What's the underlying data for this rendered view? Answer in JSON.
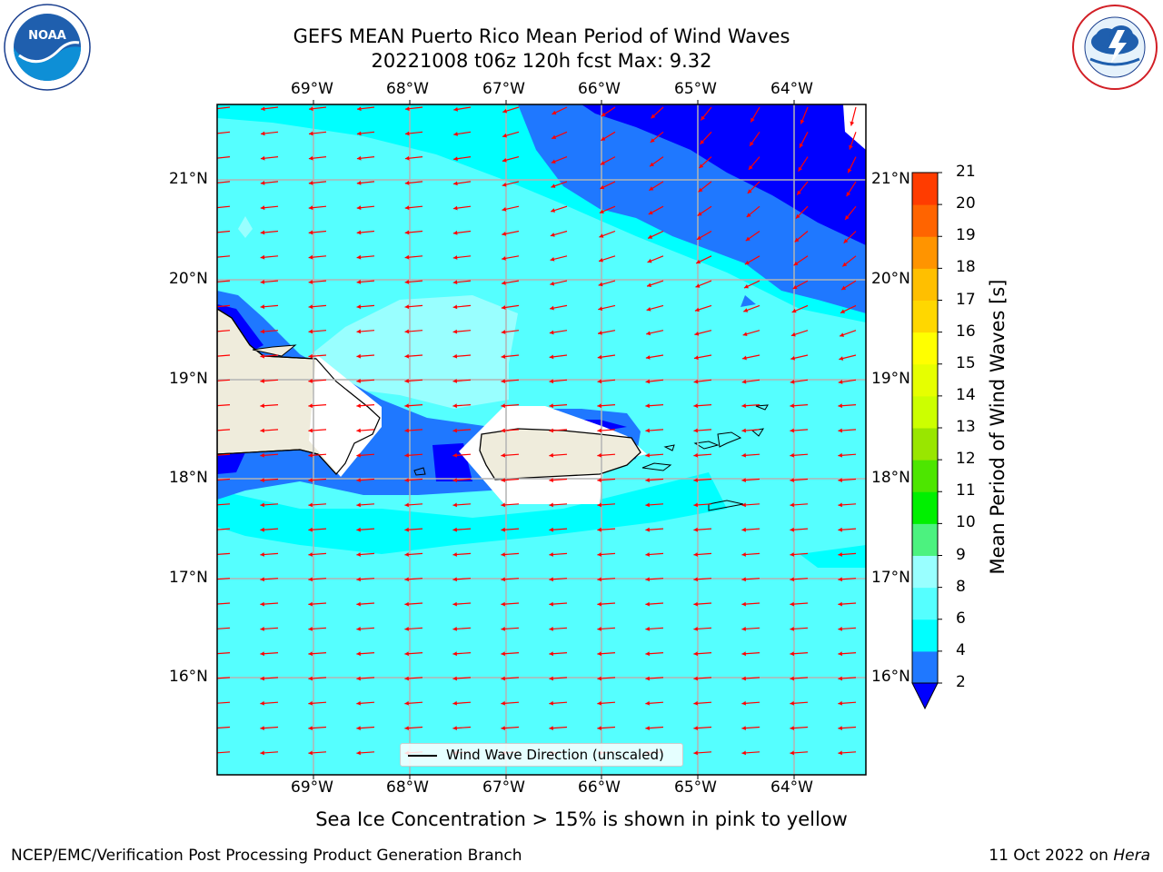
{
  "header": {
    "title": "GEFS MEAN Puerto Rico Mean Period of Wind Waves",
    "subtitle": "20221008 t06z 120h fcst   Max: 9.32"
  },
  "logos": {
    "left_icon": "noaa-logo",
    "left_text": "NOAA",
    "left_ring_text": "NATIONAL OCEANIC AND ATMOSPHERIC ADMINISTRATION · U.S. DEPARTMENT OF COMMERCE",
    "right_icon": "nws-logo",
    "right_ring_text": "NATIONAL WEATHER SERVICE"
  },
  "map": {
    "lon_labels": [
      "69°W",
      "68°W",
      "67°W",
      "66°W",
      "65°W",
      "64°W"
    ],
    "lat_labels": [
      "21°N",
      "20°N",
      "19°N",
      "18°N",
      "17°N",
      "16°N"
    ],
    "legend_label": "Wind Wave Direction (unscaled)",
    "arrow_color": "#ff0000",
    "land_color": "#efecdc"
  },
  "colorbar": {
    "label": "Mean Period of Wind Waves [s]",
    "ticks": [
      "2",
      "4",
      "6",
      "8",
      "9",
      "10",
      "11",
      "12",
      "13",
      "14",
      "15",
      "16",
      "17",
      "18",
      "19",
      "20",
      "21"
    ],
    "colors": [
      "#1f78ff",
      "#00ffff",
      "#55ffff",
      "#99ffff",
      "#4cf27f",
      "#00f000",
      "#4de600",
      "#99e600",
      "#ccff00",
      "#e6ff00",
      "#ffff00",
      "#ffd700",
      "#ffbf00",
      "#ff9400",
      "#ff6400",
      "#ff3c00",
      "#ff0000"
    ],
    "under_color": "#0000ff"
  },
  "chart_data": {
    "type": "heatmap",
    "title": "GEFS MEAN Puerto Rico Mean Period of Wind Waves",
    "subtitle": "20221008 t06z 120h fcst   Max: 9.32",
    "x_range_lon": [
      -70.0,
      -63.25
    ],
    "y_range_lat": [
      15.0,
      21.75
    ],
    "colorbar_label": "Mean Period of Wind Waves [s]",
    "max_value": 9.32,
    "levels": [
      2,
      4,
      6,
      8,
      9,
      10,
      11,
      12,
      13,
      14,
      15,
      16,
      17,
      18,
      19,
      20,
      21
    ],
    "legend": "Wind Wave Direction (unscaled)",
    "grid": true
  },
  "footer": {
    "note": "Sea Ice Concentration > 15% is shown in pink to yellow",
    "left": "NCEP/EMC/Verification Post Processing Product Generation Branch",
    "right_prefix": "11 Oct 2022 on ",
    "right_host": "Hera"
  }
}
